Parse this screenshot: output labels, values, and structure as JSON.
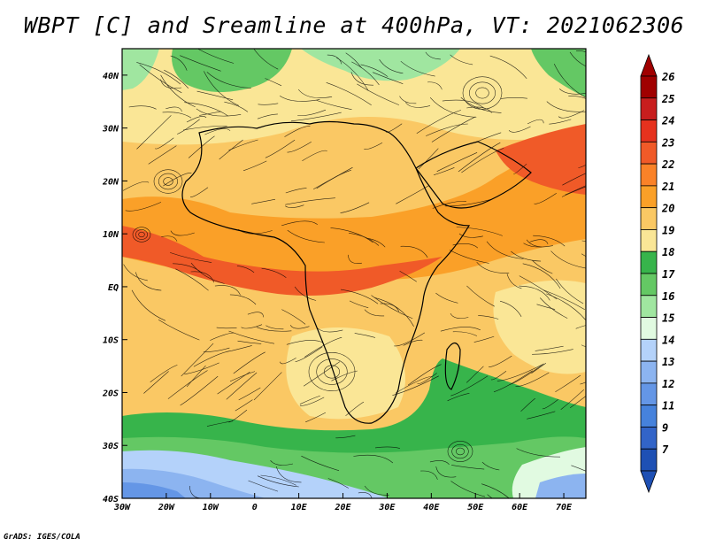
{
  "title": "WBPT [C] and Sreamline at 400hPa, VT: 2021062306",
  "credit": "GrADS: IGES/COLA",
  "map": {
    "lon_range": [
      -30,
      75
    ],
    "lat_range": [
      -40,
      45
    ],
    "lon_ticks": [
      {
        "value": -30,
        "label": "30W"
      },
      {
        "value": -20,
        "label": "20W"
      },
      {
        "value": -10,
        "label": "10W"
      },
      {
        "value": 0,
        "label": "0"
      },
      {
        "value": 10,
        "label": "10E"
      },
      {
        "value": 20,
        "label": "20E"
      },
      {
        "value": 30,
        "label": "30E"
      },
      {
        "value": 40,
        "label": "40E"
      },
      {
        "value": 50,
        "label": "50E"
      },
      {
        "value": 60,
        "label": "60E"
      },
      {
        "value": 70,
        "label": "70E"
      }
    ],
    "lat_ticks": [
      {
        "value": 40,
        "label": "40N"
      },
      {
        "value": 30,
        "label": "30N"
      },
      {
        "value": 20,
        "label": "20N"
      },
      {
        "value": 10,
        "label": "10N"
      },
      {
        "value": 0,
        "label": "EQ"
      },
      {
        "value": -10,
        "label": "10S"
      },
      {
        "value": -20,
        "label": "20S"
      },
      {
        "value": -30,
        "label": "30S"
      },
      {
        "value": -40,
        "label": "40S"
      }
    ]
  },
  "legend": {
    "levels": [
      {
        "label": "26",
        "color": "#a00000"
      },
      {
        "label": "25",
        "color": "#c81e1e"
      },
      {
        "label": "24",
        "color": "#e6321e"
      },
      {
        "label": "23",
        "color": "#f05a28"
      },
      {
        "label": "22",
        "color": "#fa8228"
      },
      {
        "label": "21",
        "color": "#faa028"
      },
      {
        "label": "20",
        "color": "#fac864"
      },
      {
        "label": "19",
        "color": "#fae696"
      },
      {
        "label": "18",
        "color": "#37b44b"
      },
      {
        "label": "17",
        "color": "#64c864"
      },
      {
        "label": "16",
        "color": "#a0e6a0"
      },
      {
        "label": "15",
        "color": "#e1fae1"
      },
      {
        "label": "14",
        "color": "#b4d2fa"
      },
      {
        "label": "13",
        "color": "#8cb4f0"
      },
      {
        "label": "12",
        "color": "#6496e6"
      },
      {
        "label": "11",
        "color": "#4682dc"
      },
      {
        "label": "9",
        "color": "#3264c8"
      },
      {
        "label": "7",
        "color": "#1e50b4"
      }
    ]
  }
}
